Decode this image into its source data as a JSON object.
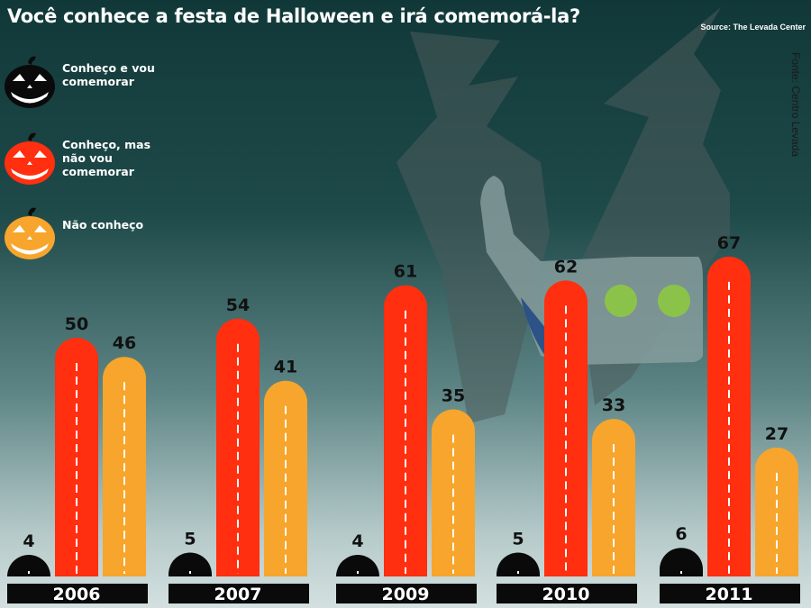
{
  "header": {
    "title": "Você conhece a festa de Halloween e irá comemorá-la?",
    "source": "Source: The Levada Center",
    "credit": "Fonte: Centro Levada"
  },
  "legend": {
    "items": [
      {
        "label": "Conheço e vou comemorar",
        "color": "#0a0a0a",
        "icon": "black-pumpkin-icon"
      },
      {
        "label": "Conheço, mas não vou comemorar",
        "color": "#ff2f10",
        "icon": "red-pumpkin-icon"
      },
      {
        "label": "Não conheço",
        "color": "#f7a52c",
        "icon": "orange-pumpkin-icon"
      }
    ]
  },
  "chart_data": {
    "type": "bar",
    "title": "Você conhece a festa de Halloween e irá comemorá-la?",
    "categories": [
      "2006",
      "2007",
      "2009",
      "2010",
      "2011"
    ],
    "series": [
      {
        "name": "Conheço e vou comemorar",
        "color": "#0a0a0a",
        "values": [
          4,
          5,
          4,
          5,
          6
        ]
      },
      {
        "name": "Conheço, mas não vou comemorar",
        "color": "#ff2f10",
        "values": [
          50,
          54,
          61,
          62,
          67
        ]
      },
      {
        "name": "Não conheço",
        "color": "#f7a52c",
        "values": [
          46,
          41,
          35,
          33,
          27
        ]
      }
    ],
    "ylim": [
      0,
      70
    ],
    "xlabel": "",
    "ylabel": "",
    "grid": false,
    "legend_position": "top-left"
  }
}
